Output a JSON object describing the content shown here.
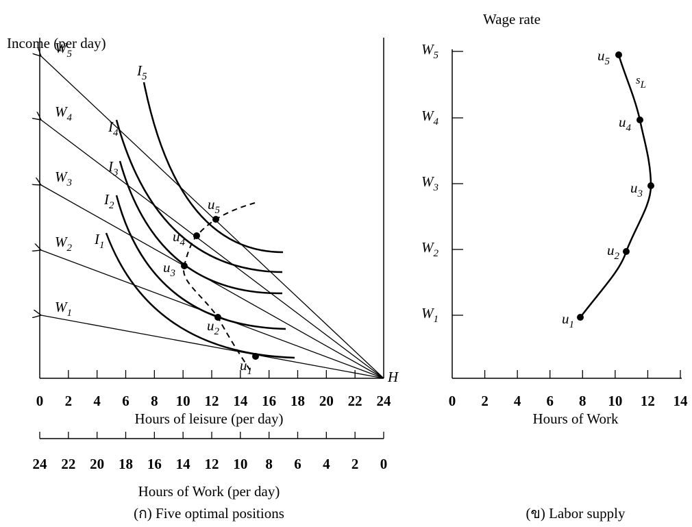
{
  "left_panel": {
    "y_axis_label": "Income (per day)",
    "x_axis_label": "Hours of leisure (per day)",
    "x_ticks": [
      0,
      2,
      4,
      6,
      8,
      10,
      12,
      14,
      16,
      18,
      20,
      22,
      24
    ],
    "work_axis_label": "Hours of Work (per day)",
    "work_ticks": [
      24,
      22,
      20,
      18,
      16,
      14,
      12,
      10,
      8,
      6,
      4,
      2,
      0
    ],
    "endpoint_label": "H",
    "wage_lines": [
      {
        "letter": "W",
        "sub": "1"
      },
      {
        "letter": "W",
        "sub": "2"
      },
      {
        "letter": "W",
        "sub": "3"
      },
      {
        "letter": "W",
        "sub": "4"
      },
      {
        "letter": "W",
        "sub": "5"
      }
    ],
    "indifference_curves": [
      {
        "letter": "I",
        "sub": "1"
      },
      {
        "letter": "I",
        "sub": "2"
      },
      {
        "letter": "I",
        "sub": "3"
      },
      {
        "letter": "I",
        "sub": "4"
      },
      {
        "letter": "I",
        "sub": "5"
      }
    ],
    "optimal_points": [
      {
        "letter": "u",
        "sub": "1"
      },
      {
        "letter": "u",
        "sub": "2"
      },
      {
        "letter": "u",
        "sub": "3"
      },
      {
        "letter": "u",
        "sub": "4"
      },
      {
        "letter": "u",
        "sub": "5"
      }
    ],
    "caption": "(ก) Five optimal positions"
  },
  "right_panel": {
    "y_axis_label": "Wage rate",
    "x_axis_label": "Hours of Work",
    "x_ticks": [
      0,
      2,
      4,
      6,
      8,
      10,
      12,
      14
    ],
    "y_ticks": [
      {
        "letter": "W",
        "sub": "1"
      },
      {
        "letter": "W",
        "sub": "2"
      },
      {
        "letter": "W",
        "sub": "3"
      },
      {
        "letter": "W",
        "sub": "4"
      },
      {
        "letter": "W",
        "sub": "5"
      }
    ],
    "points": [
      {
        "letter": "u",
        "sub": "1"
      },
      {
        "letter": "u",
        "sub": "2"
      },
      {
        "letter": "u",
        "sub": "3"
      },
      {
        "letter": "u",
        "sub": "4"
      },
      {
        "letter": "u",
        "sub": "5"
      }
    ],
    "curve_label": {
      "letter": "s",
      "sub": "L"
    },
    "caption": "(ข) Labor supply"
  }
}
